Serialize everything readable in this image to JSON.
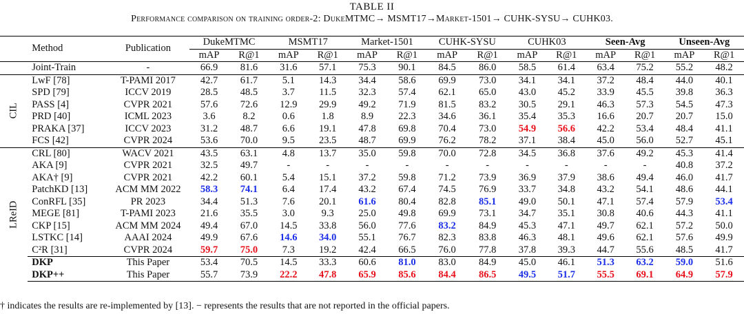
{
  "table_label": "TABLE II",
  "table_title": "Performance comparison on training order-2: DukeMTMC→ MSMT17→Market-1501→ CUHK-SYSU→ CUHK03.",
  "headers": {
    "method": "Method",
    "publication": "Publication",
    "datasets": [
      "DukeMTMC",
      "MSMT17",
      "Market-1501",
      "CUHK-SYSU",
      "CUHK03",
      "Seen-Avg",
      "Unseen-Avg"
    ],
    "metrics": [
      "mAP",
      "R@1"
    ]
  },
  "groups": {
    "cil": "CIL",
    "lreid": "LReID"
  },
  "joint": {
    "method": "Joint-Train",
    "pub": "-",
    "vals": [
      "66.9",
      "81.6",
      "31.6",
      "57.1",
      "75.3",
      "90.1",
      "84.5",
      "86.0",
      "58.5",
      "61.4",
      "63.4",
      "75.2",
      "55.2",
      "48.2"
    ]
  },
  "cil_rows": [
    {
      "method": "LwF [78]",
      "pub": "T-PAMI 2017",
      "vals": [
        "42.7",
        "61.7",
        "5.1",
        "14.3",
        "34.4",
        "58.6",
        "69.9",
        "73.0",
        "34.1",
        "34.1",
        "37.2",
        "48.4",
        "44.0",
        "40.1"
      ]
    },
    {
      "method": "SPD [79]",
      "pub": "ICCV 2019",
      "vals": [
        "28.5",
        "48.5",
        "3.7",
        "11.5",
        "32.3",
        "57.4",
        "62.1",
        "65.0",
        "43.0",
        "45.2",
        "33.9",
        "45.5",
        "39.8",
        "36.3"
      ]
    },
    {
      "method": "PASS [4]",
      "pub": "CVPR 2021",
      "vals": [
        "57.6",
        "72.6",
        "12.9",
        "29.9",
        "49.2",
        "71.9",
        "81.5",
        "83.2",
        "30.5",
        "29.1",
        "46.3",
        "57.3",
        "54.5",
        "47.3"
      ]
    },
    {
      "method": "PRD [40]",
      "pub": "ICML 2023",
      "vals": [
        "3.6",
        "8.2",
        "0.6",
        "1.8",
        "8.9",
        "22.3",
        "34.6",
        "36.1",
        "35.4",
        "35.3",
        "16.6",
        "20.7",
        "20.7",
        "15.0"
      ]
    },
    {
      "method": "PRAKA [37]",
      "pub": "ICCV 2023",
      "vals": [
        "31.2",
        "48.7",
        "6.6",
        "19.1",
        "47.8",
        "69.8",
        "70.4",
        "73.0",
        "54.9",
        "56.6",
        "42.2",
        "53.4",
        "48.4",
        "41.1"
      ]
    },
    {
      "method": "FCS [42]",
      "pub": "CVPR 2024",
      "vals": [
        "53.6",
        "70.0",
        "9.5",
        "23.5",
        "48.7",
        "69.9",
        "76.2",
        "78.2",
        "37.1",
        "38.4",
        "45.0",
        "56.0",
        "52.7",
        "45.1"
      ]
    }
  ],
  "lreid_rows": [
    {
      "method": "CRL [80]",
      "pub": "WACV 2021",
      "vals": [
        "43.5",
        "63.1",
        "4.8",
        "13.7",
        "35.0",
        "59.8",
        "70.0",
        "72.8",
        "34.5",
        "36.8",
        "37.6",
        "49.2",
        "45.3",
        "41.4"
      ]
    },
    {
      "method": "AKA [9]",
      "pub": "CVPR 2021",
      "vals": [
        "32.5",
        "49.7",
        "-",
        "-",
        "-",
        "-",
        "-",
        "-",
        "-",
        "-",
        "-",
        "-",
        "40.8",
        "37.2"
      ]
    },
    {
      "method": "AKA† [9]",
      "pub": "CVPR 2021",
      "vals": [
        "42.2",
        "60.1",
        "5.4",
        "15.1",
        "37.2",
        "59.8",
        "71.2",
        "73.9",
        "36.9",
        "37.9",
        "38.6",
        "49.4",
        "46.0",
        "41.7"
      ]
    },
    {
      "method": "PatchKD [13]",
      "pub": "ACM MM 2022",
      "vals": [
        "58.3",
        "74.1",
        "6.4",
        "17.4",
        "43.2",
        "67.4",
        "74.5",
        "76.9",
        "33.7",
        "34.8",
        "43.2",
        "54.1",
        "48.6",
        "44.1"
      ]
    },
    {
      "method": "ConRFL [35]",
      "pub": "PR 2023",
      "vals": [
        "34.4",
        "51.3",
        "7.6",
        "20.1",
        "61.6",
        "80.4",
        "82.8",
        "85.1",
        "49.0",
        "50.1",
        "47.1",
        "57.4",
        "57.9",
        "53.4"
      ]
    },
    {
      "method": "MEGE [81]",
      "pub": "T-PAMI 2023",
      "vals": [
        "21.6",
        "35.5",
        "3.0",
        "9.3",
        "25.0",
        "49.8",
        "69.9",
        "73.1",
        "34.7",
        "35.1",
        "30.8",
        "40.6",
        "44.3",
        "41.1"
      ]
    },
    {
      "method": "CKP [15]",
      "pub": "ACM MM 2024",
      "vals": [
        "49.4",
        "67.0",
        "14.5",
        "33.8",
        "56.0",
        "77.6",
        "83.2",
        "84.9",
        "45.3",
        "47.1",
        "49.7",
        "62.1",
        "57.2",
        "50.0"
      ]
    },
    {
      "method": "LSTKC [14]",
      "pub": "AAAI 2024",
      "vals": [
        "49.9",
        "67.6",
        "14.6",
        "34.0",
        "55.1",
        "76.7",
        "82.3",
        "83.8",
        "46.3",
        "48.1",
        "49.6",
        "62.1",
        "57.6",
        "49.9"
      ]
    },
    {
      "method": "C²R [31]",
      "pub": "CVPR 2024",
      "vals": [
        "59.7",
        "75.0",
        "7.3",
        "19.2",
        "42.4",
        "66.5",
        "76.0",
        "77.8",
        "37.8",
        "39.3",
        "44.7",
        "55.6",
        "48.5",
        "41.7"
      ]
    }
  ],
  "ours_rows": [
    {
      "method": "DKP",
      "pub": "This Paper",
      "vals": [
        "53.4",
        "70.5",
        "14.5",
        "33.3",
        "60.6",
        "81.0",
        "83.0",
        "84.9",
        "45.0",
        "46.1",
        "51.3",
        "63.2",
        "59.0",
        "51.6"
      ]
    },
    {
      "method": "DKP++",
      "pub": "This Paper",
      "vals": [
        "55.7",
        "73.9",
        "22.2",
        "47.8",
        "65.9",
        "85.6",
        "84.4",
        "86.5",
        "49.5",
        "51.7",
        "55.5",
        "69.1",
        "64.9",
        "57.9"
      ]
    }
  ],
  "highlights": {
    "red": {
      "PRAKA [37]": [
        8,
        9
      ],
      "C²R [31]": [
        0,
        1
      ],
      "DKP++": [
        2,
        3,
        4,
        5,
        6,
        7,
        10,
        11,
        12,
        13
      ]
    },
    "blue": {
      "PatchKD [13]": [
        0,
        1
      ],
      "ConRFL [35]": [
        4,
        7,
        13
      ],
      "CKP [15]": [
        6
      ],
      "LSTKC [14]": [
        2,
        3
      ],
      "DKP": [
        5,
        10,
        11,
        12
      ],
      "DKP++": [
        8,
        9
      ]
    },
    "red_color": "#e8101a",
    "blue_color": "#1a2ee8"
  },
  "footnote": "† indicates the results are re-implemented by [13]. − represents the results that are not reported in the official papers."
}
